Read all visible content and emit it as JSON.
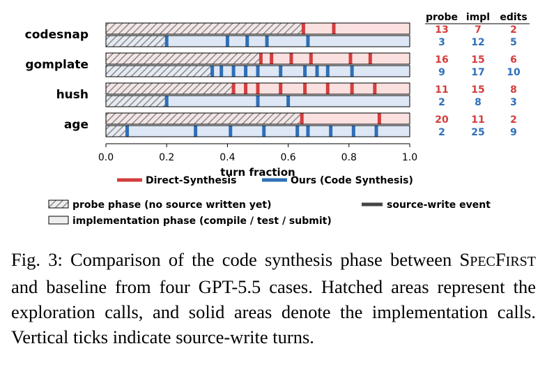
{
  "chart_data": {
    "type": "bar",
    "xlabel": "turn fraction",
    "xlim": [
      0.0,
      1.0
    ],
    "xticks": [
      "0.0",
      "0.2",
      "0.4",
      "0.6",
      "0.8",
      "1.0"
    ],
    "series_styles": [
      {
        "name": "Direct-Synthesis",
        "color": "#d43d3d",
        "fill": "#fbe0e0"
      },
      {
        "name": "Ours (Code Synthesis)",
        "color": "#2f6fb8",
        "fill": "#dde7f6"
      }
    ],
    "columns": [
      "probe",
      "impl",
      "edits"
    ],
    "cases": [
      {
        "name": "codesnap",
        "direct": {
          "probe_end": 0.65,
          "writes": [
            0.65,
            0.75
          ],
          "probe": "13",
          "impl": "7",
          "edits": "2"
        },
        "ours": {
          "probe_end": 0.2,
          "writes": [
            0.2,
            0.4,
            0.465,
            0.53,
            0.665
          ],
          "probe": "3",
          "impl": "12",
          "edits": "5"
        }
      },
      {
        "name": "gomplate",
        "direct": {
          "probe_end": 0.51,
          "writes": [
            0.51,
            0.545,
            0.61,
            0.675,
            0.805,
            0.87
          ],
          "probe": "16",
          "impl": "15",
          "edits": "6"
        },
        "ours": {
          "probe_end": 0.35,
          "writes": [
            0.35,
            0.38,
            0.42,
            0.46,
            0.5,
            0.575,
            0.655,
            0.695,
            0.73,
            0.81
          ],
          "probe": "9",
          "impl": "17",
          "edits": "10"
        }
      },
      {
        "name": "hush",
        "direct": {
          "probe_end": 0.42,
          "writes": [
            0.42,
            0.46,
            0.5,
            0.575,
            0.655,
            0.73,
            0.81,
            0.885
          ],
          "probe": "11",
          "impl": "15",
          "edits": "8"
        },
        "ours": {
          "probe_end": 0.2,
          "writes": [
            0.2,
            0.5,
            0.6
          ],
          "probe": "2",
          "impl": "8",
          "edits": "3"
        }
      },
      {
        "name": "age",
        "direct": {
          "probe_end": 0.645,
          "writes": [
            0.645,
            0.9
          ],
          "probe": "20",
          "impl": "11",
          "edits": "2"
        },
        "ours": {
          "probe_end": 0.07,
          "writes": [
            0.07,
            0.295,
            0.41,
            0.52,
            0.63,
            0.665,
            0.74,
            0.815,
            0.89
          ],
          "probe": "2",
          "impl": "25",
          "edits": "9"
        }
      }
    ],
    "legend": {
      "direct": "Direct-Synthesis",
      "ours": "Ours (Code Synthesis)",
      "probe_phase": "probe phase (no source written yet)",
      "impl_phase": "implementation phase (compile / test / submit)",
      "write_event": "source-write event"
    }
  },
  "caption": {
    "prefix": "Fig. 3: Comparison of the code synthesis phase between ",
    "name_big1": "S",
    "name_small1": "PEC",
    "name_big2": "F",
    "name_small2": "IRST",
    "suffix": " and baseline from four GPT-5.5 cases. Hatched areas represent the exploration calls, and solid areas denote the implementation calls. Vertical ticks indicate source-write turns."
  }
}
